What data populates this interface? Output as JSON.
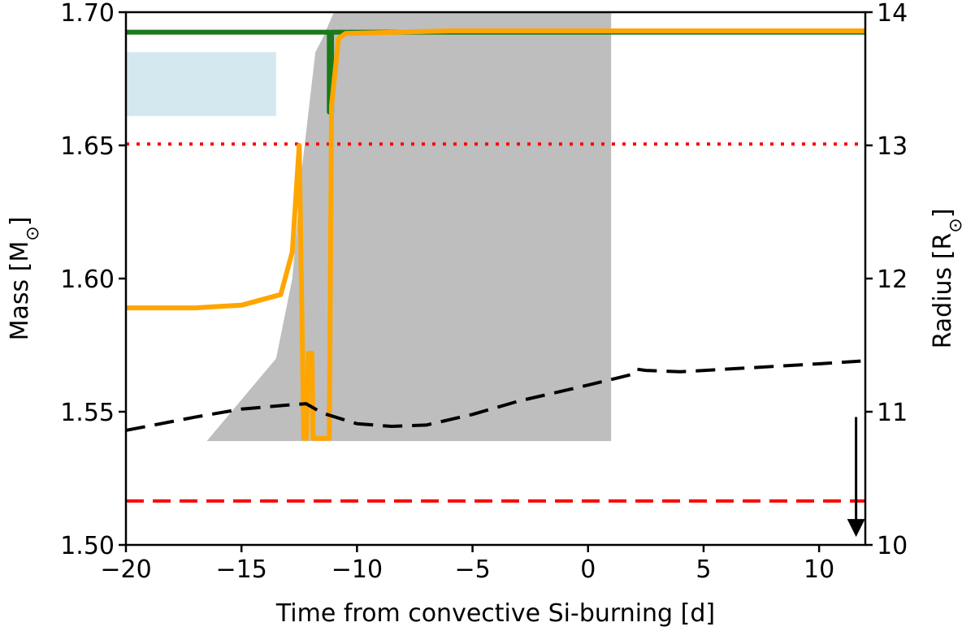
{
  "chart_data": {
    "type": "line",
    "xlabel": "Time from convective Si-burning [d]",
    "ylabel_left": "Mass [M",
    "ylabel_left_sub": "⊙",
    "ylabel_right": "Radius [R",
    "ylabel_right_sub": "⊙",
    "xlim": [
      -20,
      12
    ],
    "ylim_left": [
      1.5,
      1.7
    ],
    "ylim_right": [
      10,
      14
    ],
    "x_ticks": [
      -20,
      -15,
      -10,
      -5,
      0,
      5,
      10
    ],
    "x_tick_labels": [
      "−20",
      "−15",
      "−10",
      "−5",
      "0",
      "5",
      "10"
    ],
    "y_ticks_left": [
      1.5,
      1.55,
      1.6,
      1.65,
      1.7
    ],
    "y_tick_labels_left": [
      "1.50",
      "1.55",
      "1.60",
      "1.65",
      "1.70"
    ],
    "y_ticks_right": [
      10,
      11,
      12,
      13,
      14
    ],
    "y_tick_labels_right": [
      "10",
      "11",
      "12",
      "13",
      "14"
    ],
    "grid": false,
    "legend": "none",
    "colors": {
      "convective_zone": "#bebebe",
      "light_blue_zone": "#d4e8f0",
      "green_line": "#1a7a1a",
      "orange_line": "#ffa500",
      "red_reference": "#ff0000",
      "black_radius": "#000000"
    },
    "shaded_regions": [
      {
        "name": "convective-zone-main",
        "color": "gray",
        "x": [
          -16.5,
          -13.5,
          -12.8,
          -12.4,
          -12.0,
          -11.8,
          -11.5,
          -11.0,
          1.0,
          1.0,
          12.0
        ],
        "y_bottom": [
          1.539,
          1.539,
          1.539,
          1.539,
          1.539,
          1.539,
          1.539,
          1.539,
          1.539,
          1.7,
          1.7
        ],
        "y_top": [
          1.539,
          1.57,
          1.6,
          1.64,
          1.67,
          1.685,
          1.69,
          1.7,
          1.7,
          1.7,
          1.7
        ]
      },
      {
        "name": "light-blue-zone",
        "color": "lightblue",
        "x": [
          -20,
          -13.5
        ],
        "y_bottom": 1.661,
        "y_top": 1.685
      }
    ],
    "series": [
      {
        "axis": "left",
        "color": "green",
        "style": "solid",
        "x": [
          -20,
          -11.2,
          -11.2,
          -11.1,
          -11.1,
          -10.9,
          12
        ],
        "y": [
          1.6925,
          1.6925,
          1.6625,
          1.6625,
          1.6925,
          1.6925,
          1.6925
        ]
      },
      {
        "axis": "left",
        "color": "orange",
        "style": "solid",
        "x": [
          -20,
          -17,
          -15,
          -13.3,
          -12.8,
          -12.5,
          -12.3,
          -12.2,
          -12.1,
          -11.95,
          -11.9,
          -11.7,
          -11.3,
          -11.2,
          -11.1,
          -10.8,
          -10.5,
          -6,
          12
        ],
        "y": [
          1.589,
          1.589,
          1.59,
          1.594,
          1.61,
          1.65,
          1.54,
          1.54,
          1.572,
          1.572,
          1.54,
          1.54,
          1.54,
          1.54,
          1.665,
          1.69,
          1.692,
          1.693,
          1.693
        ]
      },
      {
        "axis": "right",
        "color": "black",
        "style": "dashed",
        "x": [
          -20,
          -17,
          -15,
          -13,
          -12.2,
          -11.5,
          -10,
          -8.5,
          -7,
          -5,
          -3,
          0,
          1.9,
          2.1,
          2.5,
          4,
          7,
          10,
          11.8
        ],
        "y": [
          10.86,
          10.96,
          11.02,
          11.05,
          11.06,
          10.99,
          10.91,
          10.89,
          10.9,
          10.98,
          11.08,
          11.2,
          11.28,
          11.32,
          11.31,
          11.3,
          11.33,
          11.36,
          11.38
        ]
      }
    ],
    "horizontal_lines": [
      {
        "axis": "left",
        "y": 1.6505,
        "color": "red",
        "style": "dotted"
      },
      {
        "axis": "left",
        "y": 1.5165,
        "color": "red",
        "style": "dashed"
      }
    ],
    "annotations": [
      {
        "type": "arrow",
        "x": 11.6,
        "y_from": 1.548,
        "y_to": 1.503,
        "color": "black"
      }
    ]
  }
}
